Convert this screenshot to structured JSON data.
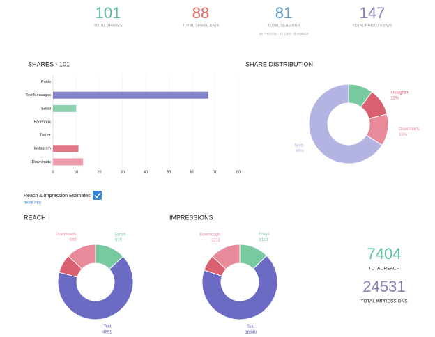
{
  "stats": [
    {
      "value": 101,
      "label": "TOTAL SHARES",
      "color": "#5fbf98"
    },
    {
      "value": 88,
      "label": "TOTAL SHARE DATA",
      "color": "#e0675c"
    },
    {
      "value": 81,
      "label": "TOTAL SESSIONS",
      "color": "#5a97c6",
      "detail": "18 PHOTOS - 63 GIFS - 0 VIDEOS"
    },
    {
      "value": 147,
      "label": "TOTAL PHOTO VIEWS",
      "color": "#8b80b8"
    }
  ],
  "estimates": {
    "label": "Reach & Impression Estimates",
    "link": "more info"
  },
  "totals": [
    {
      "value": 7404,
      "label": "TOTAL REACH",
      "color": "#5fbf98"
    },
    {
      "value": 24531,
      "label": "TOTAL IMPRESSIONS",
      "color": "#8b80b8"
    }
  ],
  "chart_data": [
    {
      "type": "hbar",
      "title": "SHARES - 101",
      "categories": [
        "Prints",
        "Text Messages",
        "Email",
        "Facebook",
        "Twitter",
        "Instagram",
        "Downloads"
      ],
      "values": [
        0,
        67,
        10,
        0,
        0,
        11,
        13
      ],
      "colors": [
        "#f0a050",
        "#6c6cc2",
        "#78c8a0",
        "#5a97c6",
        "#5ab0e0",
        "#d9606e",
        "#e88a9a"
      ],
      "xlim": [
        0,
        80
      ],
      "xticks": [
        0,
        10,
        20,
        30,
        40,
        50,
        60,
        70,
        80
      ],
      "grid": true
    },
    {
      "type": "donut",
      "title": "SHARE DISTRIBUTION",
      "categories": [
        null,
        "Instagram",
        "Downloads",
        "Texts"
      ],
      "values": [
        10,
        11,
        13,
        66
      ],
      "value_labels": [
        null,
        "11%",
        "13%",
        "66%"
      ],
      "colors": [
        "#78c8a0",
        "#d9606e",
        "#e88a9a",
        "#b4b4e2"
      ]
    },
    {
      "type": "donut",
      "title": "REACH",
      "categories": [
        "Email",
        "Text",
        null,
        "Downloads"
      ],
      "values": [
        970,
        4891,
        594,
        949
      ],
      "colors": [
        "#78c8a0",
        "#6b6bc4",
        "#d9606e",
        "#e88a9a"
      ]
    },
    {
      "type": "donut",
      "title": "IMPRESSIONS",
      "categories": [
        "Email",
        "Text",
        null,
        "Downloads"
      ],
      "values": [
        3110,
        16549,
        1661,
        3211
      ],
      "colors": [
        "#78c8a0",
        "#6b6bc4",
        "#d9606e",
        "#e88a9a"
      ]
    }
  ]
}
